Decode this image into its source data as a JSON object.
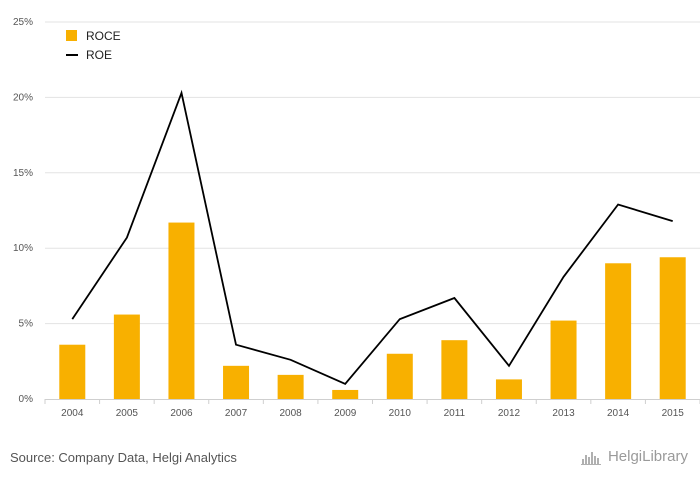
{
  "chart_data": {
    "type": "bar",
    "categories": [
      "2004",
      "2005",
      "2006",
      "2007",
      "2008",
      "2009",
      "2010",
      "2011",
      "2012",
      "2013",
      "2014",
      "2015"
    ],
    "series": [
      {
        "name": "ROCE",
        "kind": "bar",
        "color": "#f8b000",
        "values": [
          3.6,
          5.6,
          11.7,
          2.2,
          1.6,
          0.6,
          3.0,
          3.9,
          1.3,
          5.2,
          9.0,
          9.4
        ]
      },
      {
        "name": "ROE",
        "kind": "line",
        "color": "#000000",
        "values": [
          5.3,
          10.7,
          20.3,
          3.6,
          2.6,
          1.0,
          5.3,
          6.7,
          2.2,
          8.1,
          12.9,
          11.8
        ]
      }
    ],
    "yticks": [
      "0%",
      "5%",
      "10%",
      "15%",
      "20%",
      "25%"
    ],
    "ylim": [
      0,
      25
    ],
    "grid": true,
    "legend_position": "top-left"
  },
  "footer": {
    "source": "Source: Company Data, Helgi Analytics",
    "brand": "HelgiLibrary"
  }
}
